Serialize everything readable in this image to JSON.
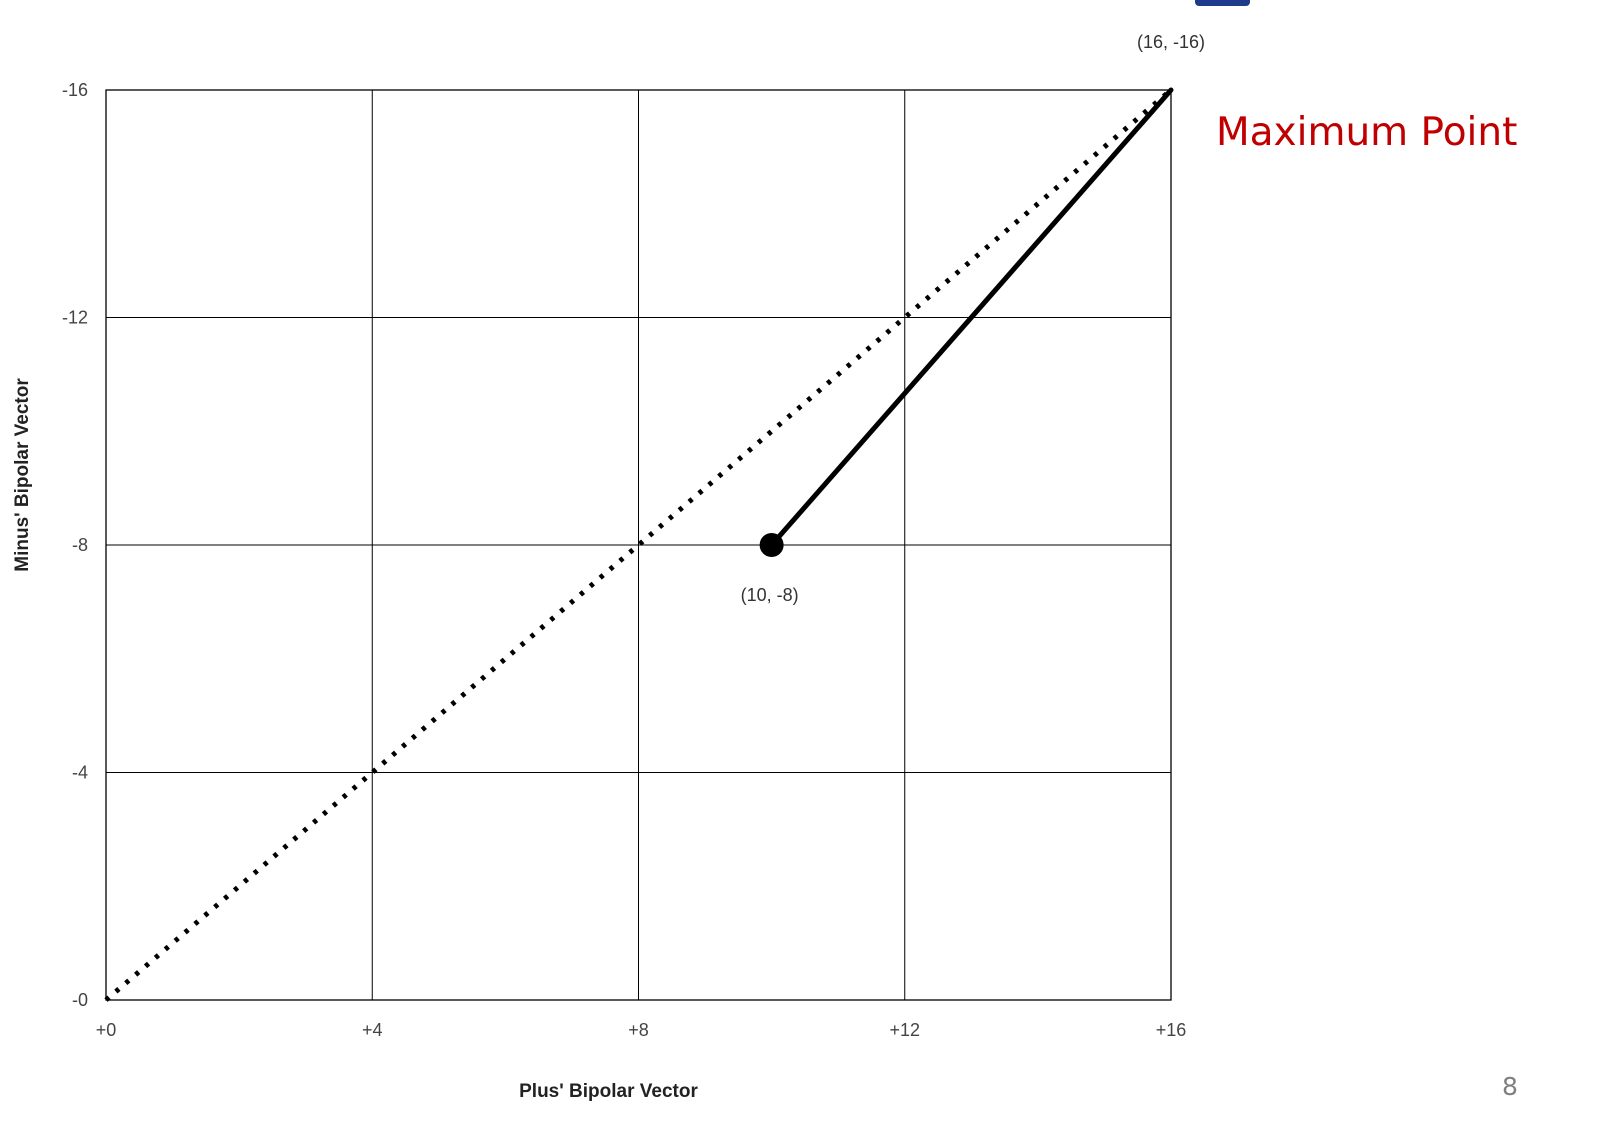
{
  "slide": {
    "annotation": "Maximum Point",
    "page_number": "8"
  },
  "colors": {
    "annotation": "#c00000",
    "title_fragment": "#1f3a8a",
    "grid": "#000000",
    "line": "#000000"
  },
  "chart_data": {
    "type": "line",
    "title": "",
    "xlabel": "Plus' Bipolar Vector",
    "ylabel": "Minus' Bipolar Vector",
    "xlim": [
      0,
      16
    ],
    "ylim": [
      0,
      -16
    ],
    "x_ticks": [
      {
        "value": 0,
        "label": "+0"
      },
      {
        "value": 4,
        "label": "+4"
      },
      {
        "value": 8,
        "label": "+8"
      },
      {
        "value": 12,
        "label": "+12"
      },
      {
        "value": 16,
        "label": "+16"
      }
    ],
    "y_ticks": [
      {
        "value": 0,
        "label": "-0"
      },
      {
        "value": -4,
        "label": "-4"
      },
      {
        "value": -8,
        "label": "-8"
      },
      {
        "value": -12,
        "label": "-12"
      },
      {
        "value": -16,
        "label": "-16"
      }
    ],
    "grid": true,
    "series": [
      {
        "style": "dotted",
        "points": [
          [
            0,
            0
          ],
          [
            16,
            -16
          ]
        ]
      },
      {
        "style": "solid",
        "points": [
          [
            10,
            -8
          ],
          [
            16,
            -16
          ]
        ]
      }
    ],
    "markers": [
      {
        "x": 10,
        "y": -8
      }
    ],
    "point_labels": [
      {
        "text": "(16, -16)",
        "x": 16,
        "y": -16
      },
      {
        "text": "(10, -8)",
        "x": 10,
        "y": -8
      }
    ]
  }
}
